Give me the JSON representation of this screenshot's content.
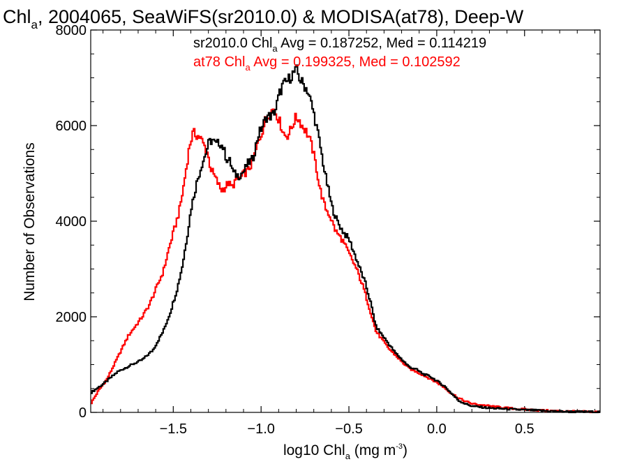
{
  "chart_data": {
    "type": "line",
    "style": "step",
    "title": {
      "main": "Chl",
      "sub": "a",
      "rest": ", 2004065, SeaWiFS(sr2010.0) & MODISA(at78), Deep-W"
    },
    "xlabel": {
      "pre": "log10 Chl",
      "sub": "a",
      "mid": " (mg m",
      "sup": "-3",
      "post": ")"
    },
    "ylabel": "Number of Observations",
    "xlim": [
      -1.97,
      0.93
    ],
    "ylim": [
      0,
      8000
    ],
    "xticks": [
      -1.5,
      -1.0,
      -0.5,
      0.0,
      0.5
    ],
    "xtick_labels": [
      "−1.5",
      "−1.0",
      "−0.5",
      "0.0",
      "0.5"
    ],
    "yticks": [
      0,
      2000,
      4000,
      6000,
      8000
    ],
    "ytick_labels": [
      "0",
      "2000",
      "4000",
      "6000",
      "8000"
    ],
    "grid": false,
    "series": [
      {
        "name": "sr2010.0",
        "color": "#000000",
        "legend": {
          "pre": "sr2010.0 Chl",
          "sub": "a",
          "post": " Avg = 0.187252, Med = 0.114219"
        },
        "points": [
          [
            -1.97,
            420
          ],
          [
            -1.9,
            600
          ],
          [
            -1.82,
            850
          ],
          [
            -1.75,
            980
          ],
          [
            -1.68,
            1100
          ],
          [
            -1.62,
            1300
          ],
          [
            -1.56,
            1700
          ],
          [
            -1.52,
            2100
          ],
          [
            -1.48,
            2600
          ],
          [
            -1.45,
            3100
          ],
          [
            -1.42,
            3800
          ],
          [
            -1.4,
            4300
          ],
          [
            -1.37,
            4800
          ],
          [
            -1.34,
            5200
          ],
          [
            -1.32,
            5400
          ],
          [
            -1.3,
            5650
          ],
          [
            -1.28,
            5700
          ],
          [
            -1.26,
            5600
          ],
          [
            -1.24,
            5650
          ],
          [
            -1.22,
            5550
          ],
          [
            -1.2,
            5300
          ],
          [
            -1.18,
            5250
          ],
          [
            -1.16,
            5000
          ],
          [
            -1.13,
            4950
          ],
          [
            -1.1,
            5050
          ],
          [
            -1.08,
            5200
          ],
          [
            -1.05,
            5300
          ],
          [
            -1.02,
            5800
          ],
          [
            -1.0,
            5950
          ],
          [
            -0.97,
            6200
          ],
          [
            -0.94,
            6200
          ],
          [
            -0.92,
            6350
          ],
          [
            -0.9,
            6650
          ],
          [
            -0.88,
            6850
          ],
          [
            -0.86,
            6900
          ],
          [
            -0.84,
            7000
          ],
          [
            -0.82,
            7100
          ],
          [
            -0.8,
            7150
          ],
          [
            -0.78,
            6950
          ],
          [
            -0.76,
            6850
          ],
          [
            -0.74,
            6750
          ],
          [
            -0.72,
            6500
          ],
          [
            -0.7,
            6200
          ],
          [
            -0.67,
            5650
          ],
          [
            -0.64,
            5000
          ],
          [
            -0.6,
            4300
          ],
          [
            -0.57,
            4000
          ],
          [
            -0.54,
            3800
          ],
          [
            -0.5,
            3600
          ],
          [
            -0.47,
            3300
          ],
          [
            -0.44,
            3000
          ],
          [
            -0.41,
            2700
          ],
          [
            -0.38,
            2300
          ],
          [
            -0.35,
            1800
          ],
          [
            -0.32,
            1650
          ],
          [
            -0.28,
            1450
          ],
          [
            -0.24,
            1250
          ],
          [
            -0.2,
            1100
          ],
          [
            -0.16,
            950
          ],
          [
            -0.12,
            900
          ],
          [
            -0.08,
            800
          ],
          [
            -0.04,
            750
          ],
          [
            0.0,
            650
          ],
          [
            0.04,
            550
          ],
          [
            0.08,
            400
          ],
          [
            0.12,
            250
          ],
          [
            0.16,
            180
          ],
          [
            0.2,
            130
          ],
          [
            0.3,
            90
          ],
          [
            0.4,
            70
          ],
          [
            0.5,
            50
          ],
          [
            0.6,
            35
          ],
          [
            0.7,
            20
          ],
          [
            0.8,
            12
          ],
          [
            0.93,
            10
          ]
        ]
      },
      {
        "name": "at78",
        "color": "#ff0000",
        "legend": {
          "pre": "at78 Chl",
          "sub": "a",
          "post": " Avg = 0.199325, Med = 0.102592"
        },
        "points": [
          [
            -1.97,
            200
          ],
          [
            -1.93,
            450
          ],
          [
            -1.88,
            700
          ],
          [
            -1.84,
            1000
          ],
          [
            -1.8,
            1300
          ],
          [
            -1.76,
            1600
          ],
          [
            -1.72,
            1800
          ],
          [
            -1.68,
            2000
          ],
          [
            -1.64,
            2250
          ],
          [
            -1.6,
            2600
          ],
          [
            -1.56,
            2950
          ],
          [
            -1.53,
            3400
          ],
          [
            -1.5,
            3800
          ],
          [
            -1.47,
            4200
          ],
          [
            -1.45,
            4600
          ],
          [
            -1.43,
            5100
          ],
          [
            -1.41,
            5600
          ],
          [
            -1.39,
            5850
          ],
          [
            -1.37,
            5800
          ],
          [
            -1.35,
            5750
          ],
          [
            -1.33,
            5600
          ],
          [
            -1.31,
            5450
          ],
          [
            -1.29,
            5100
          ],
          [
            -1.27,
            4950
          ],
          [
            -1.25,
            4800
          ],
          [
            -1.23,
            4650
          ],
          [
            -1.21,
            4700
          ],
          [
            -1.19,
            4800
          ],
          [
            -1.17,
            4700
          ],
          [
            -1.15,
            4850
          ],
          [
            -1.12,
            4900
          ],
          [
            -1.1,
            5000
          ],
          [
            -1.08,
            5050
          ],
          [
            -1.05,
            5250
          ],
          [
            -1.02,
            5650
          ],
          [
            -1.0,
            5850
          ],
          [
            -0.98,
            6100
          ],
          [
            -0.95,
            6300
          ],
          [
            -0.93,
            6350
          ],
          [
            -0.91,
            6200
          ],
          [
            -0.89,
            6000
          ],
          [
            -0.87,
            5800
          ],
          [
            -0.85,
            5800
          ],
          [
            -0.83,
            5950
          ],
          [
            -0.81,
            6150
          ],
          [
            -0.79,
            6150
          ],
          [
            -0.77,
            6000
          ],
          [
            -0.75,
            5900
          ],
          [
            -0.73,
            5750
          ],
          [
            -0.71,
            5500
          ],
          [
            -0.69,
            5150
          ],
          [
            -0.67,
            4700
          ],
          [
            -0.64,
            4300
          ],
          [
            -0.61,
            4100
          ],
          [
            -0.58,
            3800
          ],
          [
            -0.54,
            3600
          ],
          [
            -0.5,
            3300
          ],
          [
            -0.46,
            3000
          ],
          [
            -0.42,
            2600
          ],
          [
            -0.38,
            2100
          ],
          [
            -0.35,
            1700
          ],
          [
            -0.32,
            1550
          ],
          [
            -0.28,
            1350
          ],
          [
            -0.24,
            1200
          ],
          [
            -0.2,
            1050
          ],
          [
            -0.16,
            920
          ],
          [
            -0.12,
            850
          ],
          [
            -0.08,
            780
          ],
          [
            -0.04,
            700
          ],
          [
            0.0,
            620
          ],
          [
            0.04,
            520
          ],
          [
            0.08,
            400
          ],
          [
            0.12,
            300
          ],
          [
            0.16,
            230
          ],
          [
            0.2,
            180
          ],
          [
            0.3,
            130
          ],
          [
            0.4,
            90
          ],
          [
            0.5,
            60
          ],
          [
            0.6,
            40
          ],
          [
            0.7,
            25
          ],
          [
            0.8,
            15
          ],
          [
            0.93,
            10
          ]
        ]
      }
    ]
  }
}
